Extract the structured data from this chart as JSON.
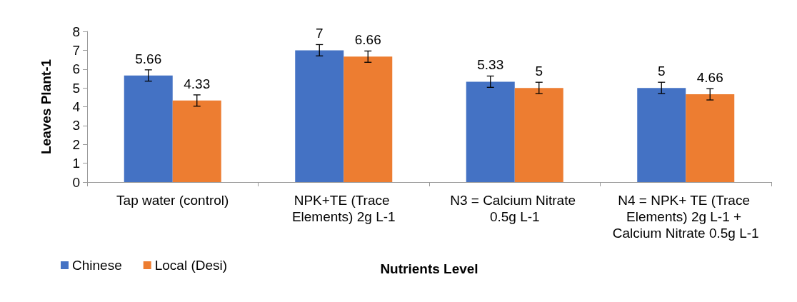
{
  "chart_data": {
    "type": "bar",
    "xlabel": "Nutrients Level",
    "ylabel": "Leaves Plant-1",
    "categories": [
      "Tap water (control)",
      "NPK+TE (Trace Elements) 2g L-1",
      "N3 = Calcium Nitrate 0.5g L-1",
      "N4 = NPK+ TE (Trace Elements) 2g L-1 + Calcium Nitrate 0.5g L-1"
    ],
    "series": [
      {
        "name": "Chinese",
        "color": "#4472c4",
        "values": [
          5.66,
          7,
          5.33,
          5
        ],
        "errors": [
          0.3,
          0.3,
          0.3,
          0.3
        ]
      },
      {
        "name": "Local (Desi)",
        "color": "#ed7d31",
        "values": [
          4.33,
          6.66,
          5,
          4.66
        ],
        "errors": [
          0.3,
          0.3,
          0.3,
          0.3
        ]
      }
    ],
    "ylim": [
      0,
      8
    ],
    "yticks": [
      0,
      1,
      2,
      3,
      4,
      5,
      6,
      7,
      8
    ],
    "grid": false,
    "legend": "bottom left",
    "data_labels": true
  }
}
